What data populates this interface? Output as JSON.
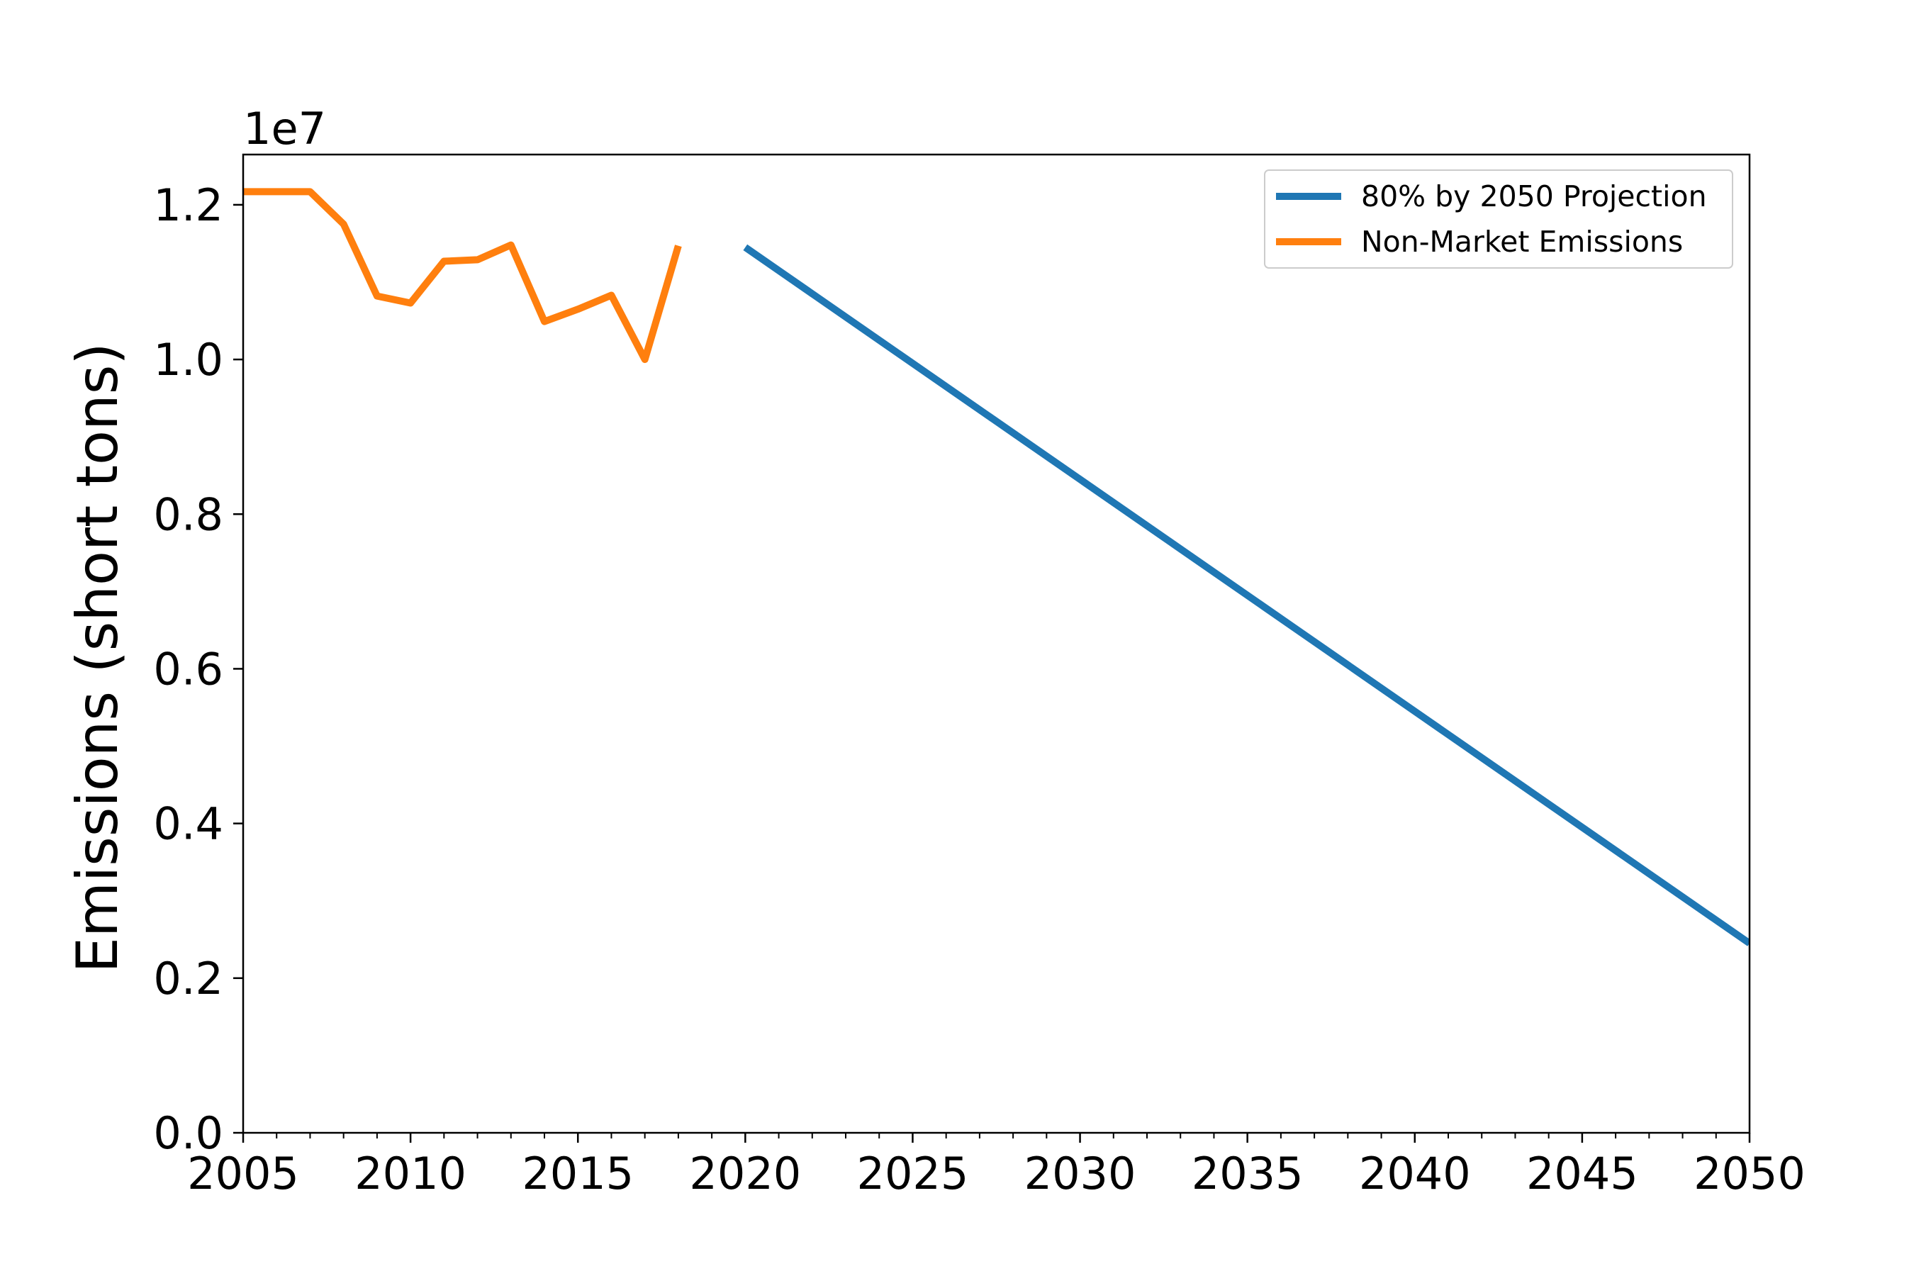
{
  "chart_data": {
    "type": "line",
    "title": "",
    "xlabel": "",
    "ylabel": "Emissions (short tons)",
    "y_offset_label": "1e7",
    "xlim": [
      2005,
      2050
    ],
    "ylim": [
      0,
      12650000
    ],
    "x_ticks": [
      2005,
      2010,
      2015,
      2020,
      2025,
      2030,
      2035,
      2040,
      2045,
      2050
    ],
    "x_tick_labels": [
      "2005",
      "2010",
      "2015",
      "2020",
      "2025",
      "2030",
      "2035",
      "2040",
      "2045",
      "2050"
    ],
    "y_ticks": [
      0,
      2000000,
      4000000,
      6000000,
      8000000,
      10000000,
      12000000
    ],
    "y_tick_labels": [
      "0.0",
      "0.2",
      "0.4",
      "0.6",
      "0.8",
      "1.0",
      "1.2"
    ],
    "grid": false,
    "legend_position": "top-right",
    "series": [
      {
        "name": "80% by 2050 Projection",
        "color": "#1f77b4",
        "x": [
          2020,
          2050
        ],
        "y": [
          11450000,
          2450000
        ]
      },
      {
        "name": "Non-Market Emissions",
        "color": "#ff7f0e",
        "x": [
          2005,
          2006,
          2007,
          2008,
          2009,
          2010,
          2011,
          2012,
          2013,
          2014,
          2015,
          2016,
          2017,
          2018
        ],
        "y": [
          12170000,
          12170000,
          12170000,
          11750000,
          10820000,
          10730000,
          11270000,
          11290000,
          11480000,
          10490000,
          10650000,
          10830000,
          10000000,
          11470000
        ]
      }
    ]
  }
}
